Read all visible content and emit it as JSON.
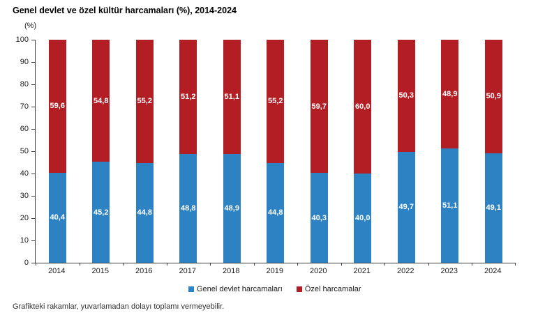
{
  "title": "Genel devlet ve özel kültür harcamaları (%), 2014-2024",
  "y_axis_label": "(%)",
  "footnote": "Grafikteki rakamlar, yuvarlamadan dolayı toplamı vermeyebilir.",
  "colors": {
    "genel_devlet": "#2d82c3",
    "ozel": "#b21e23",
    "axis": "#3c3c3c"
  },
  "legend": [
    {
      "key": "genel",
      "label": "Genel devlet harcamaları",
      "color": "#2d82c3"
    },
    {
      "key": "ozel",
      "label": "Özel harcamalar",
      "color": "#b21e23"
    }
  ],
  "chart_data": {
    "type": "bar",
    "stacked": true,
    "title": "Genel devlet ve özel kültür harcamaları (%), 2014-2024",
    "xlabel": "",
    "ylabel": "(%)",
    "ylim": [
      0,
      100
    ],
    "y_ticks": [
      0,
      10,
      20,
      30,
      40,
      50,
      60,
      70,
      80,
      90,
      100
    ],
    "grid": false,
    "legend_position": "bottom",
    "categories": [
      "2014",
      "2015",
      "2016",
      "2017",
      "2018",
      "2019",
      "2020",
      "2021",
      "2022",
      "2023",
      "2024"
    ],
    "series": [
      {
        "name": "Genel devlet harcamaları",
        "color": "#2d82c3",
        "values": [
          40.4,
          45.2,
          44.8,
          48.8,
          48.9,
          44.8,
          40.3,
          40.0,
          49.7,
          51.1,
          49.1
        ],
        "labels": [
          "40,4",
          "45,2",
          "44,8",
          "48,8",
          "48,9",
          "44,8",
          "40,3",
          "40,0",
          "49,7",
          "51,1",
          "49,1"
        ]
      },
      {
        "name": "Özel harcamalar",
        "color": "#b21e23",
        "values": [
          59.6,
          54.8,
          55.2,
          51.2,
          51.1,
          55.2,
          59.7,
          60.0,
          50.3,
          48.9,
          50.9
        ],
        "labels": [
          "59,6",
          "54,8",
          "55,2",
          "51,2",
          "51,1",
          "55,2",
          "59,7",
          "60,0",
          "50,3",
          "48,9",
          "50,9"
        ]
      }
    ]
  }
}
